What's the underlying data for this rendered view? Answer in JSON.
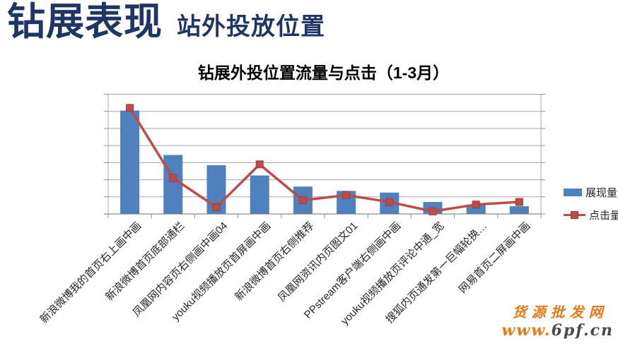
{
  "header": {
    "title": "钻展表现",
    "subtitle": "站外投放位置"
  },
  "colors": {
    "title_navy": "#1E3565",
    "bar_blue": "#4E81BD",
    "line_red": "#BE4B48",
    "marker_edge": "#9E3B38",
    "gridline_gray": "#A6A6A6",
    "axis_gray": "#8C8C8C",
    "watermark_orange": "#E8791A",
    "watermark_dark": "#4A4A4A"
  },
  "chart_data": {
    "type": "bar",
    "title": "钻展外投位置流量与点击（1-3月）",
    "categories": [
      "新浪微博我的首页右上画中画",
      "新浪微博首页底部通栏",
      "凤凰网内容页右侧画中画04",
      "youku视频播放页首屏画中画",
      "新浪微博首页右侧推荐",
      "凤凰网资讯内页图文01",
      "PPstream客户端右侧画中画",
      "youku视频播放页评论中通_宽",
      "搜狐内页通发第一巨幅轮换…",
      "网易首页二屏画中画"
    ],
    "series": [
      {
        "name": "展现量",
        "type": "bar",
        "color": "#4E81BD",
        "values": [
          6.05,
          3.45,
          2.85,
          2.25,
          1.6,
          1.35,
          1.25,
          0.7,
          0.55,
          0.45
        ]
      },
      {
        "name": "点击量",
        "type": "line",
        "color": "#BE4B48",
        "values": [
          6.2,
          2.1,
          0.4,
          2.9,
          0.8,
          1.1,
          0.7,
          0.15,
          0.55,
          0.7
        ]
      }
    ],
    "xlabel": "",
    "ylabel": "",
    "ylim": [
      0,
      7
    ],
    "y_gridline_step": 1,
    "y_tick_labels_visible": false,
    "grid": true,
    "legend_position": "right",
    "note": "y axis shows tick marks and gridlines only (no numeric labels); values estimated in gridline units"
  },
  "watermark": {
    "line1": "货源批发网",
    "line2_orange": "www.",
    "line2_dark": "6pf.cn"
  }
}
